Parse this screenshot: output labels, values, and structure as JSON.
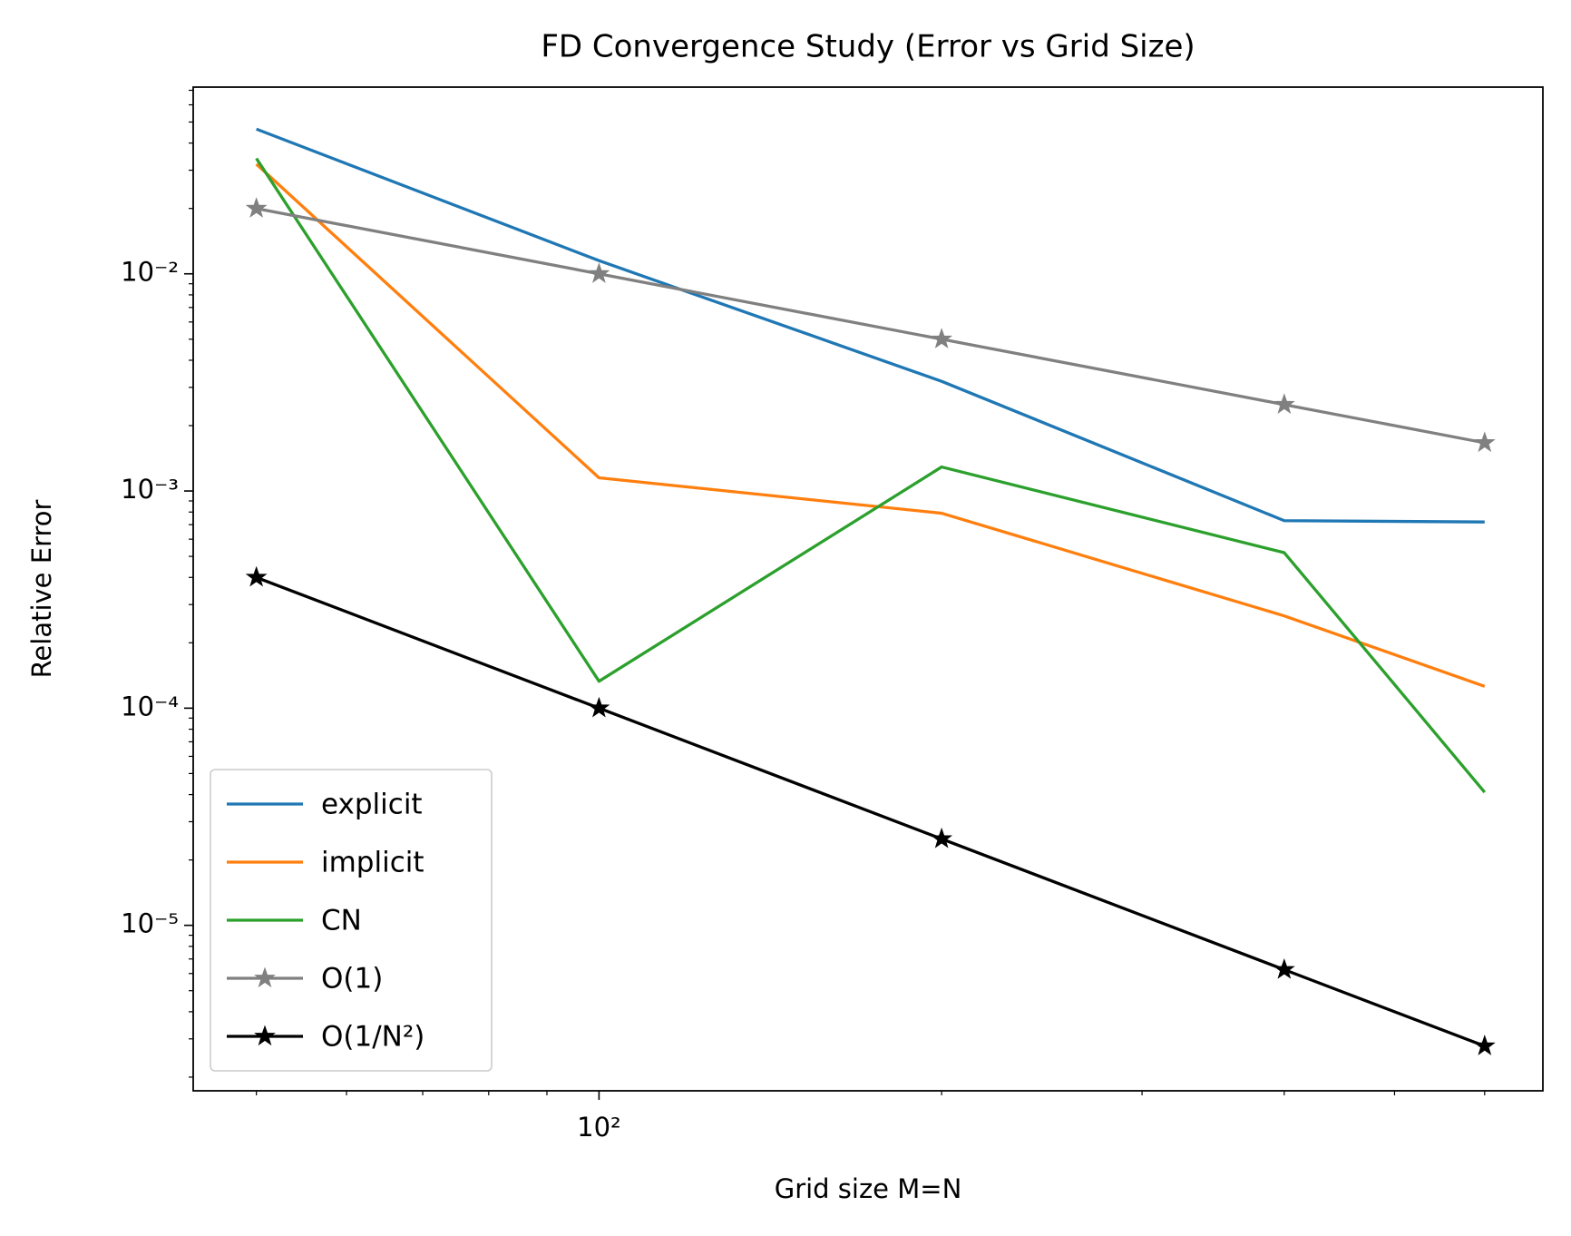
{
  "chart_data": {
    "type": "line",
    "title": "FD Convergence Study (Error vs Grid Size)",
    "x_label": "Grid size M=N",
    "y_label": "Relative Error",
    "x": [
      50,
      100,
      200,
      400,
      600
    ],
    "series": [
      {
        "name": "explicit",
        "color": "#1f77b4",
        "values": [
          0.0464,
          0.0115,
          0.0032,
          0.00073,
          0.00072
        ]
      },
      {
        "name": "implicit",
        "color": "#ff7f0e",
        "values": [
          0.032,
          0.00115,
          0.00079,
          0.000266,
          0.000126
        ]
      },
      {
        "name": "CN",
        "color": "#2ca02c",
        "values": [
          0.034,
          0.000133,
          0.00129,
          0.00052,
          4.1e-05
        ]
      },
      {
        "name": "O(1)",
        "color": "#808080",
        "marker": "star",
        "values": [
          0.02,
          0.01,
          0.005,
          0.0025,
          0.001667
        ]
      },
      {
        "name": "O(1/N²)",
        "color": "#000000",
        "marker": "star",
        "values": [
          0.0004,
          0.0001,
          2.5e-05,
          6.25e-06,
          2.78e-06
        ]
      }
    ],
    "xscale": "log",
    "yscale": "log",
    "xlim": [
      44,
      675
    ],
    "ylim": [
      1.73e-06,
      0.0724
    ],
    "xticks": [
      {
        "value": 100,
        "label": "10²"
      }
    ],
    "xminorticks": [
      50,
      60,
      70,
      80,
      90,
      200,
      300,
      400,
      500,
      600
    ],
    "yticks": [
      {
        "value": 1e-05,
        "label": "10⁻⁵"
      },
      {
        "value": 0.0001,
        "label": "10⁻⁴"
      },
      {
        "value": 0.001,
        "label": "10⁻³"
      },
      {
        "value": 0.01,
        "label": "10⁻²"
      }
    ],
    "yminorticks": [
      2e-06,
      3e-06,
      4e-06,
      5e-06,
      6e-06,
      7e-06,
      8e-06,
      9e-06,
      2e-05,
      3e-05,
      4e-05,
      5e-05,
      6e-05,
      7e-05,
      8e-05,
      9e-05,
      0.0002,
      0.0003,
      0.0004,
      0.0005,
      0.0006,
      0.0007,
      0.0008,
      0.0009,
      0.002,
      0.003,
      0.004,
      0.005,
      0.006,
      0.007,
      0.008,
      0.009,
      0.02,
      0.03,
      0.04,
      0.05,
      0.06,
      0.07
    ],
    "grid": false,
    "legend_position": "lower left"
  }
}
